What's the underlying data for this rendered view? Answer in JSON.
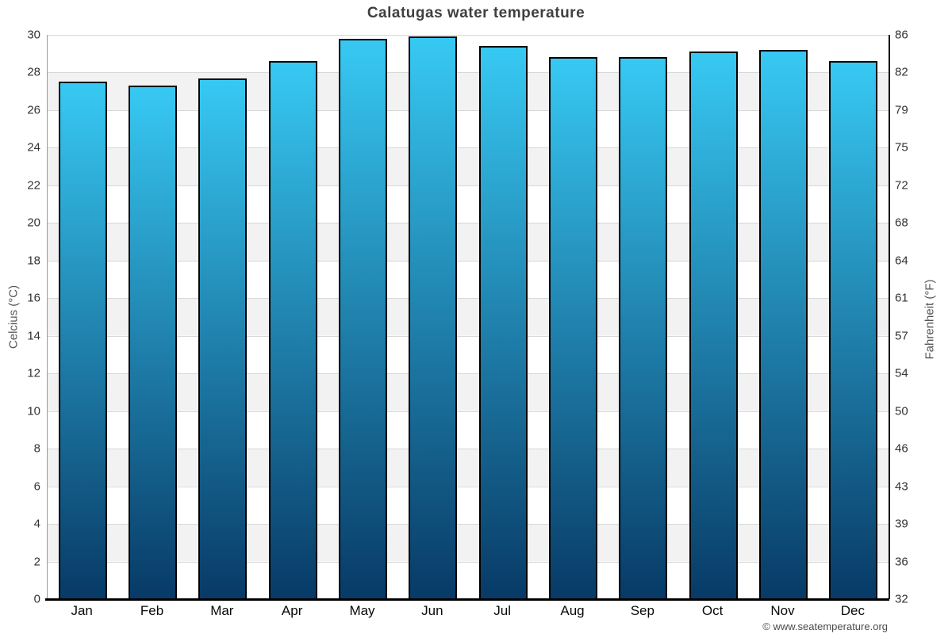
{
  "footer": {
    "copyright": "© www.seatemperature.org"
  },
  "chart_data": {
    "type": "bar",
    "title": "Calatugas water temperature",
    "categories": [
      "Jan",
      "Feb",
      "Mar",
      "Apr",
      "May",
      "Jun",
      "Jul",
      "Aug",
      "Sep",
      "Oct",
      "Nov",
      "Dec"
    ],
    "values": [
      27.5,
      27.3,
      27.7,
      28.6,
      29.8,
      29.9,
      29.4,
      28.8,
      28.8,
      29.1,
      29.2,
      28.6
    ],
    "unit": "°C",
    "ylabel": "Celcius (°C)",
    "y2label": "Fahrenheit (°F)",
    "ylim": [
      0,
      30
    ],
    "y_ticks": [
      30,
      28,
      26,
      24,
      22,
      20,
      18,
      16,
      14,
      12,
      10,
      8,
      6,
      4,
      2,
      0
    ],
    "y2_ticks": [
      86,
      82,
      79,
      75,
      72,
      68,
      64,
      61,
      57,
      54,
      50,
      46,
      43,
      39,
      36,
      32
    ],
    "grid": "horizontal gridlines with alternating shaded bands every 2°C",
    "legend": "none",
    "colors": {
      "bar_gradient_top": "#37c9f3",
      "bar_gradient_bottom": "#083a66",
      "bar_border": "#000000",
      "band_light": "#ffffff",
      "band_shaded": "#f2f2f2",
      "gridline": "#d8d8d8",
      "title_text": "#3f3f3f",
      "tick_text": "#333333",
      "axis_title_text": "#555555"
    }
  }
}
